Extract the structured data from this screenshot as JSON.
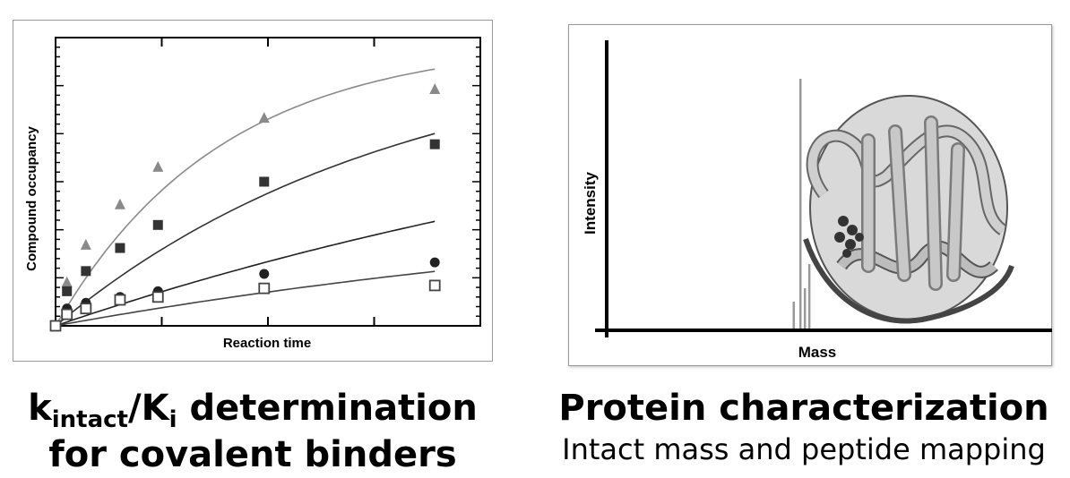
{
  "left_panel": {
    "caption_main": "k",
    "caption_sub1": "intact",
    "caption_slash": "/K",
    "caption_sub2": "i",
    "caption_rest": " determination",
    "caption_line2": "for covalent binders"
  },
  "right_panel": {
    "caption_title": "Protein characterization",
    "caption_sub": "Intact mass and peptide mapping",
    "xlabel": "Mass",
    "ylabel": "Intensity",
    "peaks": [
      {
        "x": 0.42,
        "h": 0.1
      },
      {
        "x": 0.435,
        "h": 0.93
      },
      {
        "x": 0.445,
        "h": 0.15
      },
      {
        "x": 0.455,
        "h": 0.24
      }
    ]
  },
  "chart_data": [
    {
      "type": "scatter",
      "xlabel": "Reaction time",
      "ylabel": "Compound occupancy",
      "grid": false,
      "legend": "none",
      "xlim": [
        0,
        1.12
      ],
      "ylim": [
        0,
        1.0
      ],
      "series": [
        {
          "marker": "triangle",
          "color": "#8a8a8a",
          "x": [
            0,
            0.03,
            0.08,
            0.17,
            0.27,
            0.55,
            1.0
          ],
          "y": [
            0,
            0.15,
            0.28,
            0.42,
            0.55,
            0.72,
            0.82
          ],
          "fit_k": 2.3,
          "fit_max": 0.99
        },
        {
          "marker": "square",
          "color": "#333333",
          "x": [
            0,
            0.03,
            0.08,
            0.17,
            0.27,
            0.55,
            1.0
          ],
          "y": [
            0,
            0.12,
            0.19,
            0.27,
            0.35,
            0.5,
            0.63
          ],
          "fit_k": 1.1,
          "fit_max": 1.0
        },
        {
          "marker": "circle",
          "color": "#222222",
          "x": [
            0,
            0.03,
            0.08,
            0.17,
            0.27,
            0.55,
            1.0
          ],
          "y": [
            0,
            0.06,
            0.08,
            0.1,
            0.12,
            0.18,
            0.22
          ],
          "fit_k": 0.45,
          "fit_max": 1.0
        },
        {
          "marker": "open-square",
          "color": "#444444",
          "x": [
            0,
            0.03,
            0.08,
            0.17,
            0.27,
            0.55,
            1.0
          ],
          "y": [
            0,
            0.04,
            0.06,
            0.09,
            0.1,
            0.13,
            0.14
          ],
          "fit_k": 0.5,
          "fit_max": 0.48
        }
      ]
    }
  ]
}
